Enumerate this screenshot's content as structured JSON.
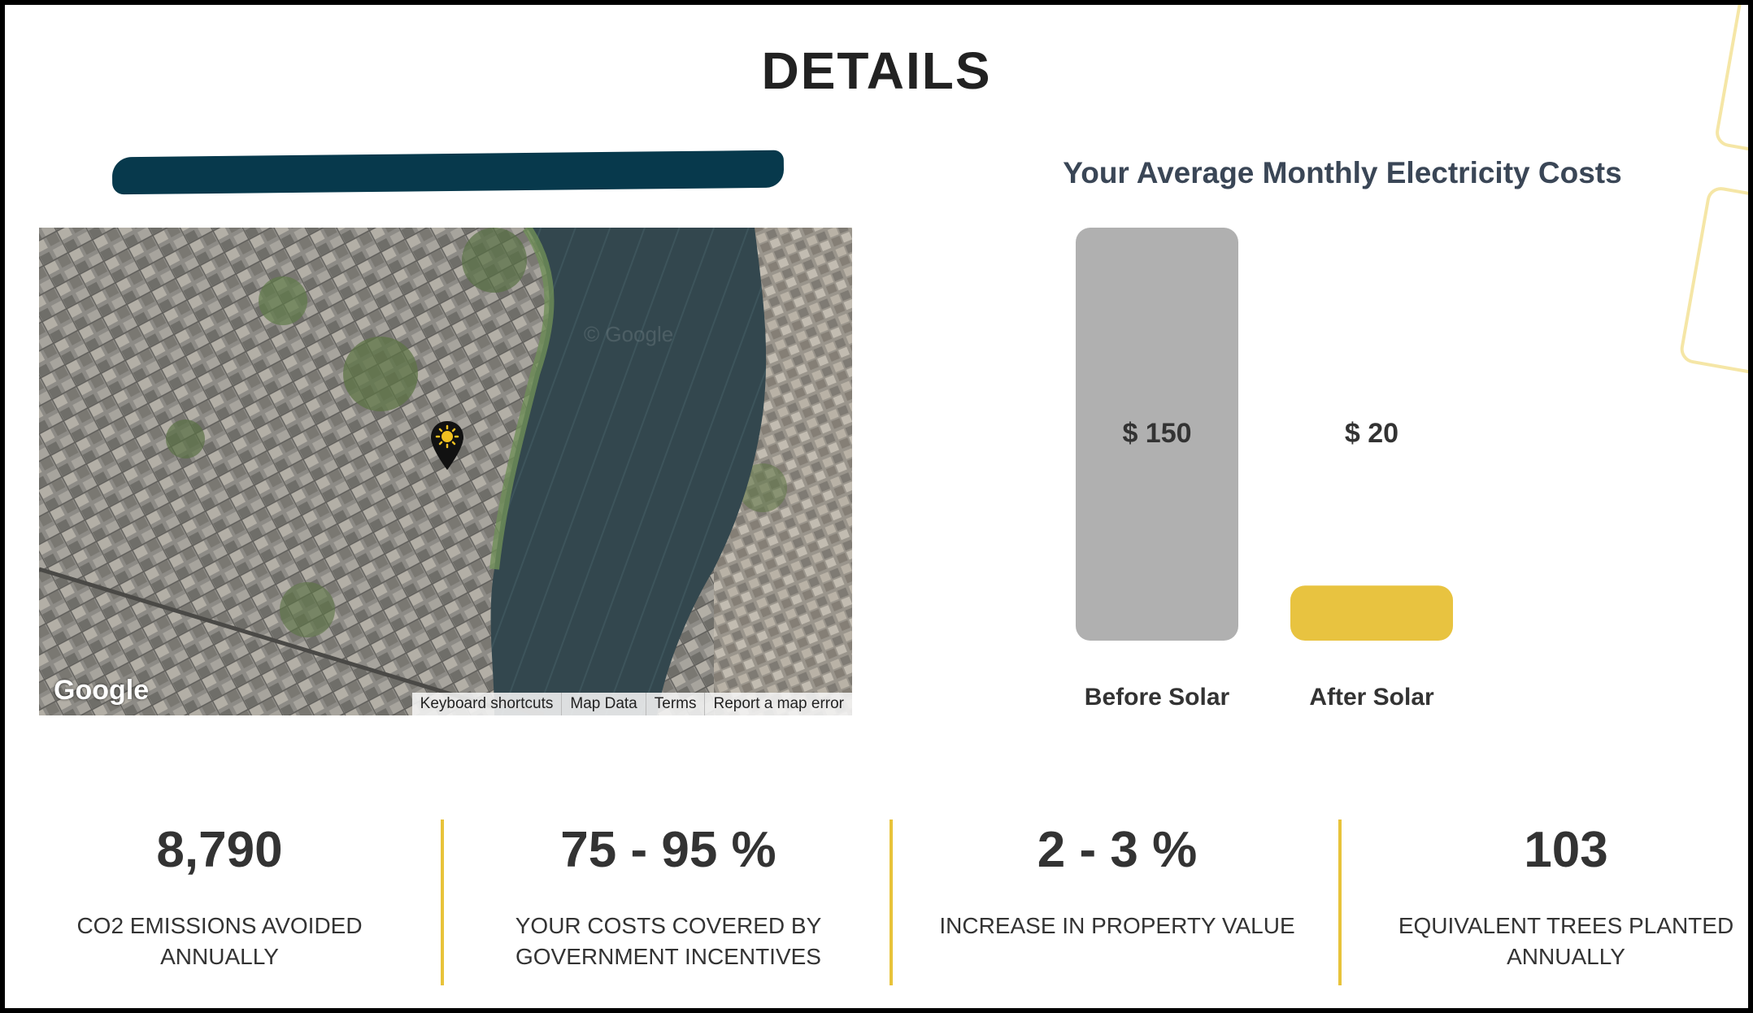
{
  "page": {
    "title": "DETAILS"
  },
  "map": {
    "logo": "Google",
    "watermark": "© Google",
    "footer_links": [
      "Keyboard shortcuts",
      "Map Data",
      "Terms",
      "Report a map error"
    ],
    "pin_icon": "solar-sun-pin-icon"
  },
  "chart_data": {
    "type": "bar",
    "title": "Your Average Monthly Electricity Costs",
    "categories": [
      "Before Solar",
      "After Solar"
    ],
    "values": [
      150,
      20
    ],
    "value_labels": [
      "$ 150",
      "$ 20"
    ],
    "ylim": [
      0,
      150
    ],
    "colors": [
      "#b0b0b0",
      "#e8c340"
    ],
    "grid": false,
    "legend": "none"
  },
  "stats": [
    {
      "value": "8,790",
      "label": "CO2 EMISSIONS AVOIDED ANNUALLY"
    },
    {
      "value": "75 - 95 %",
      "label": "YOUR COSTS COVERED BY GOVERNMENT INCENTIVES"
    },
    {
      "value": "2 - 3 %",
      "label": "INCREASE IN PROPERTY VALUE"
    },
    {
      "value": "103",
      "label": "EQUIVALENT TREES PLANTED ANNUALLY"
    }
  ],
  "colors": {
    "accent": "#e8c33a",
    "redaction": "#07394c",
    "title": "#3a4656"
  }
}
